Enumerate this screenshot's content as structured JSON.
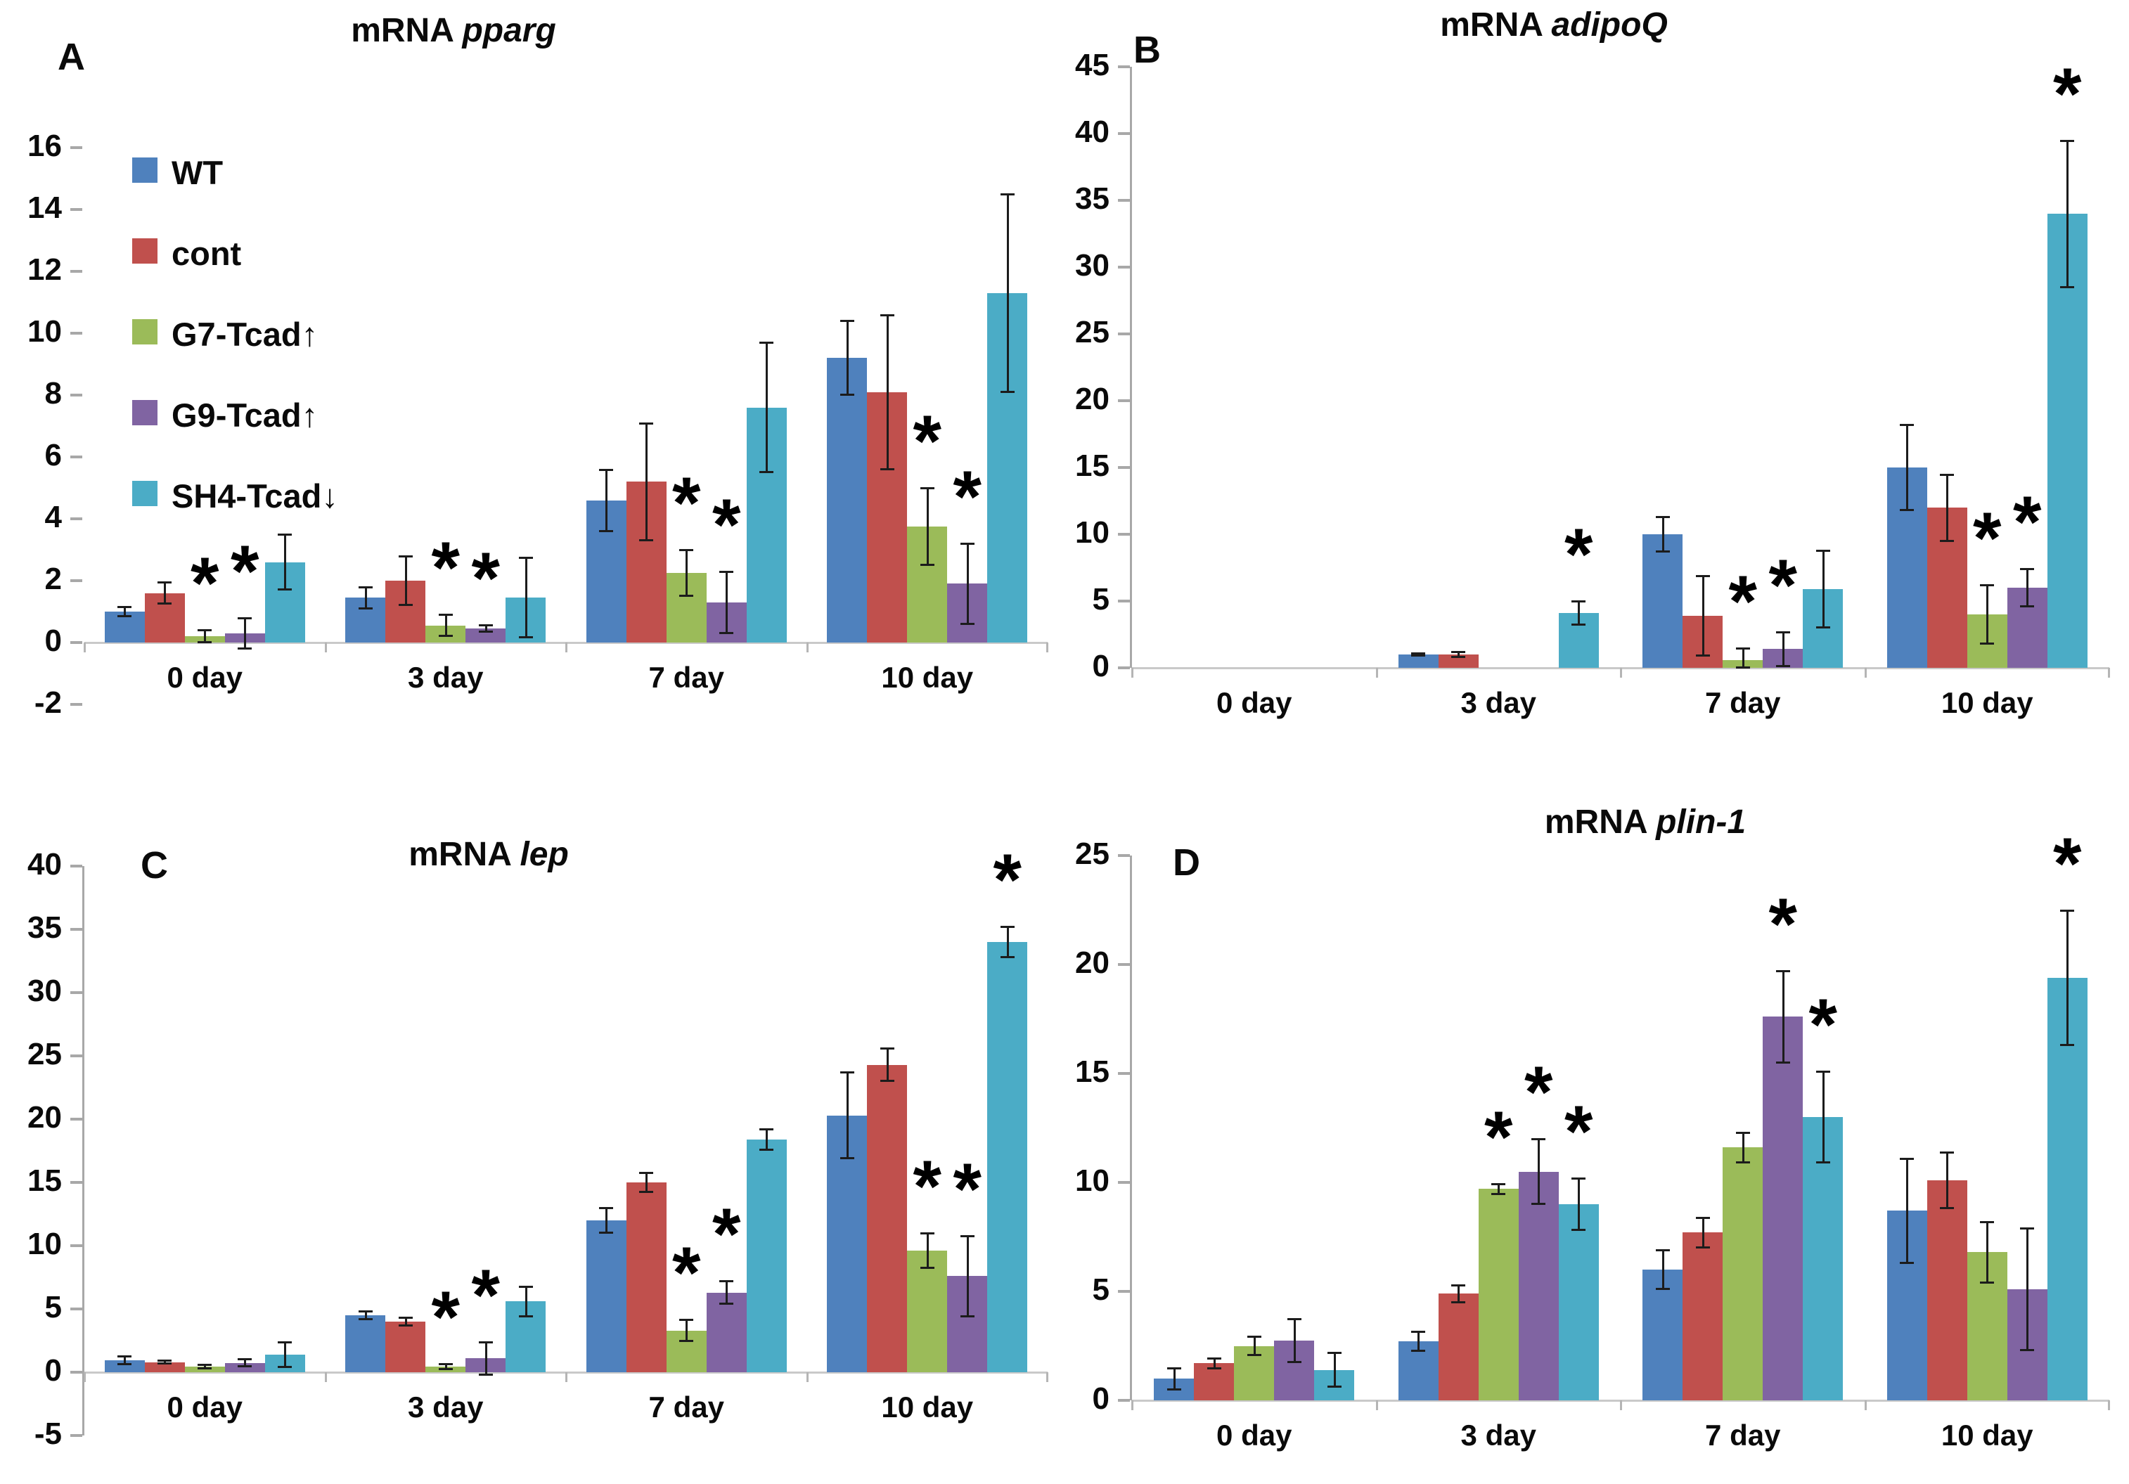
{
  "figure": {
    "background": "#ffffff"
  },
  "legend": {
    "position": "upper-left-panel-A",
    "items": [
      {
        "label": "WT",
        "color": "#4F81BD"
      },
      {
        "label": "cont",
        "color": "#C0504D"
      },
      {
        "label": "G7-Tcad↑",
        "color": "#9BBB59"
      },
      {
        "label": "G9-Tcad↑",
        "color": "#8064A2"
      },
      {
        "label": "SH4-Tcad↓",
        "color": "#4BACC6"
      }
    ]
  },
  "sig_marker": "*",
  "chart_data": [
    {
      "type": "bar",
      "panel": "A",
      "title_prefix": "mRNA",
      "title_gene": "pparg",
      "categories": [
        "0 day",
        "3 day",
        "7 day",
        "10 day"
      ],
      "ylim": [
        -2,
        16
      ],
      "ytick_step": 2,
      "yticks": [
        -2,
        0,
        2,
        4,
        6,
        8,
        10,
        12,
        14,
        16
      ],
      "grid": false,
      "series": [
        {
          "name": "WT",
          "color": "#4F81BD",
          "values": [
            1.0,
            1.45,
            4.6,
            9.2
          ],
          "errors": [
            0.15,
            0.35,
            1.0,
            1.2
          ],
          "sig": [
            false,
            false,
            false,
            false
          ]
        },
        {
          "name": "cont",
          "color": "#C0504D",
          "values": [
            1.6,
            2.0,
            5.2,
            8.1
          ],
          "errors": [
            0.35,
            0.8,
            1.9,
            2.5
          ],
          "sig": [
            false,
            false,
            false,
            false
          ]
        },
        {
          "name": "G7-Tcad↑",
          "color": "#9BBB59",
          "values": [
            0.2,
            0.55,
            2.25,
            3.75
          ],
          "errors": [
            0.2,
            0.35,
            0.75,
            1.25
          ],
          "sig": [
            true,
            true,
            true,
            true
          ]
        },
        {
          "name": "G9-Tcad↑",
          "color": "#8064A2",
          "values": [
            0.3,
            0.45,
            1.3,
            1.9
          ],
          "errors": [
            0.5,
            0.12,
            1.0,
            1.3
          ],
          "sig": [
            true,
            true,
            true,
            true
          ]
        },
        {
          "name": "SH4-Tcad↓",
          "color": "#4BACC6",
          "values": [
            2.6,
            1.45,
            7.6,
            11.3
          ],
          "errors": [
            0.9,
            1.3,
            2.1,
            3.2
          ],
          "sig": [
            false,
            false,
            false,
            false
          ]
        }
      ]
    },
    {
      "type": "bar",
      "panel": "B",
      "title_prefix": "mRNA",
      "title_gene": "adipoQ",
      "categories": [
        "0 day",
        "3 day",
        "7 day",
        "10 day"
      ],
      "ylim": [
        0,
        45
      ],
      "ytick_step": 5,
      "yticks": [
        0,
        5,
        10,
        15,
        20,
        25,
        30,
        35,
        40,
        45
      ],
      "grid": false,
      "series": [
        {
          "name": "WT",
          "color": "#4F81BD",
          "values": [
            0,
            1.0,
            10.0,
            15.0
          ],
          "errors": [
            0,
            0.12,
            1.3,
            3.2
          ],
          "sig": [
            false,
            false,
            false,
            false
          ]
        },
        {
          "name": "cont",
          "color": "#C0504D",
          "values": [
            0,
            1.0,
            3.9,
            12.0
          ],
          "errors": [
            0,
            0.2,
            3.0,
            2.5
          ],
          "sig": [
            false,
            false,
            false,
            false
          ]
        },
        {
          "name": "G7-Tcad↑",
          "color": "#9BBB59",
          "values": [
            0,
            0,
            0.6,
            4.0
          ],
          "errors": [
            0,
            0,
            0.9,
            2.2
          ],
          "sig": [
            false,
            false,
            true,
            true
          ]
        },
        {
          "name": "G9-Tcad↑",
          "color": "#8064A2",
          "values": [
            0,
            0,
            1.4,
            6.0
          ],
          "errors": [
            0,
            0,
            1.3,
            1.4
          ],
          "sig": [
            false,
            false,
            true,
            true
          ]
        },
        {
          "name": "SH4-Tcad↓",
          "color": "#4BACC6",
          "values": [
            0,
            4.1,
            5.9,
            34.0
          ],
          "errors": [
            0,
            0.9,
            2.9,
            5.5
          ],
          "sig": [
            false,
            true,
            false,
            true
          ]
        }
      ]
    },
    {
      "type": "bar",
      "panel": "C",
      "title_prefix": "mRNA",
      "title_gene": "lep",
      "categories": [
        "0 day",
        "3 day",
        "7 day",
        "10 day"
      ],
      "ylim": [
        -5,
        40
      ],
      "ytick_step": 5,
      "yticks": [
        -5,
        0,
        5,
        10,
        15,
        20,
        25,
        30,
        35,
        40
      ],
      "grid": false,
      "series": [
        {
          "name": "WT",
          "color": "#4F81BD",
          "values": [
            0.95,
            4.5,
            12.0,
            20.3
          ],
          "errors": [
            0.35,
            0.35,
            1.0,
            3.4
          ],
          "sig": [
            false,
            false,
            false,
            false
          ]
        },
        {
          "name": "cont",
          "color": "#C0504D",
          "values": [
            0.8,
            4.0,
            15.0,
            24.3
          ],
          "errors": [
            0.15,
            0.35,
            0.8,
            1.3
          ],
          "sig": [
            false,
            false,
            false,
            false
          ]
        },
        {
          "name": "G7-Tcad↑",
          "color": "#9BBB59",
          "values": [
            0.45,
            0.45,
            3.3,
            9.6
          ],
          "errors": [
            0.15,
            0.2,
            0.85,
            1.4
          ],
          "sig": [
            false,
            true,
            true,
            true
          ]
        },
        {
          "name": "G9-Tcad↑",
          "color": "#8064A2",
          "values": [
            0.75,
            1.1,
            6.3,
            7.6
          ],
          "errors": [
            0.3,
            1.3,
            0.9,
            3.2
          ],
          "sig": [
            false,
            true,
            true,
            true
          ]
        },
        {
          "name": "SH4-Tcad↓",
          "color": "#4BACC6",
          "values": [
            1.4,
            5.6,
            18.4,
            34.0
          ],
          "errors": [
            1.0,
            1.2,
            0.85,
            1.2
          ],
          "sig": [
            false,
            false,
            false,
            true
          ]
        }
      ]
    },
    {
      "type": "bar",
      "panel": "D",
      "title_prefix": "mRNA",
      "title_gene": "plin-1",
      "categories": [
        "0 day",
        "3 day",
        "7 day",
        "10 day"
      ],
      "ylim": [
        0,
        25
      ],
      "ytick_step": 5,
      "yticks": [
        0,
        5,
        10,
        15,
        20,
        25
      ],
      "grid": false,
      "series": [
        {
          "name": "WT",
          "color": "#4F81BD",
          "values": [
            1.0,
            2.7,
            6.0,
            8.7
          ],
          "errors": [
            0.5,
            0.45,
            0.9,
            2.4
          ],
          "sig": [
            false,
            false,
            false,
            false
          ]
        },
        {
          "name": "cont",
          "color": "#C0504D",
          "values": [
            1.7,
            4.9,
            7.7,
            10.1
          ],
          "errors": [
            0.25,
            0.4,
            0.7,
            1.3
          ],
          "sig": [
            false,
            false,
            false,
            false
          ]
        },
        {
          "name": "G7-Tcad↑",
          "color": "#9BBB59",
          "values": [
            2.5,
            9.7,
            11.6,
            6.8
          ],
          "errors": [
            0.45,
            0.25,
            0.7,
            1.4
          ],
          "sig": [
            false,
            true,
            false,
            false
          ]
        },
        {
          "name": "G9-Tcad↑",
          "color": "#8064A2",
          "values": [
            2.75,
            10.5,
            17.6,
            5.1
          ],
          "errors": [
            1.0,
            1.5,
            2.1,
            2.8
          ],
          "sig": [
            false,
            true,
            true,
            false
          ]
        },
        {
          "name": "SH4-Tcad↓",
          "color": "#4BACC6",
          "values": [
            1.4,
            9.0,
            13.0,
            19.4
          ],
          "errors": [
            0.8,
            1.2,
            2.1,
            3.1
          ],
          "sig": [
            false,
            true,
            true,
            true
          ]
        }
      ]
    }
  ]
}
